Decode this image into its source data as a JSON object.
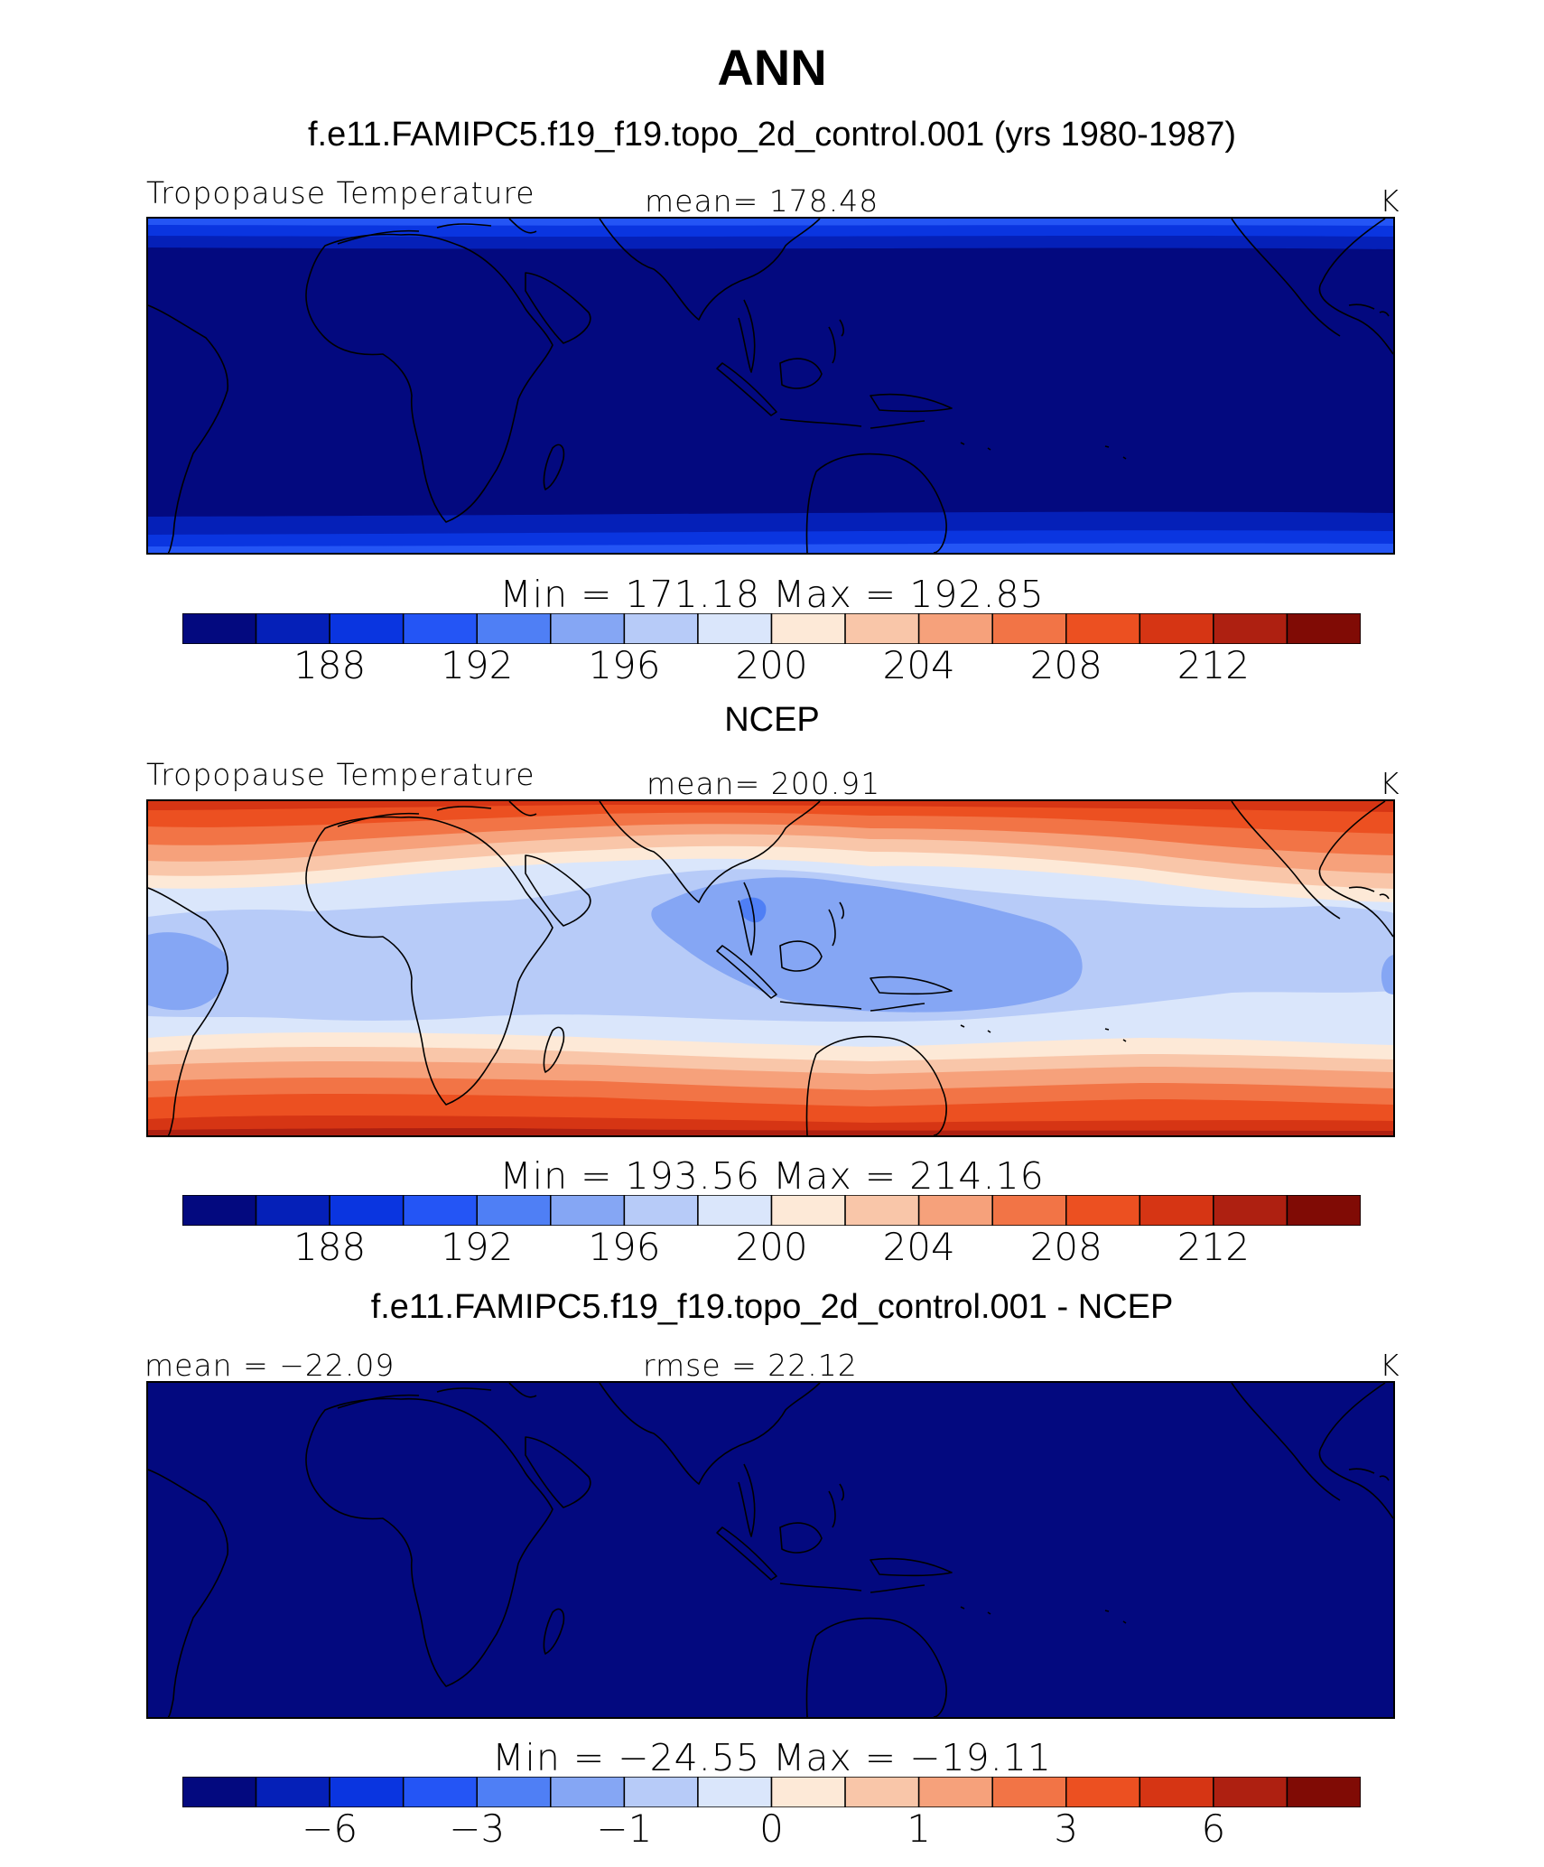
{
  "figure": {
    "title": "ANN",
    "panels": [
      {
        "id": "model",
        "header": "f.e11.FAMIPC5.f19_f19.topo_2d_control.001 (yrs 1980-1987)",
        "left_label": "Tropopause Temperature",
        "center_label": "mean=  178.48",
        "units": "K",
        "minmax": "Min  =  171.18  Max  =  192.85"
      },
      {
        "id": "obs",
        "header": "NCEP",
        "left_label": "Tropopause Temperature",
        "center_label": "mean=  200.91",
        "units": "K",
        "minmax": "Min  =  193.56  Max  =  214.16"
      },
      {
        "id": "diff",
        "header": "f.e11.FAMIPC5.f19_f19.topo_2d_control.001 - NCEP",
        "left_label": "mean  =  −22.09",
        "center_label": "rmse  =    22.12",
        "units": "K",
        "minmax": "Min  =  −24.55  Max  =  −19.11"
      }
    ]
  },
  "chart_data": [
    {
      "type": "heatmap",
      "title": "f.e11.FAMIPC5.f19_f19.topo_2d_control.001 (yrs 1980-1987)",
      "variable": "Tropopause Temperature",
      "units": "K",
      "mean": 178.48,
      "min": 171.18,
      "max": 192.85,
      "levels": [
        186,
        188,
        190,
        192,
        194,
        196,
        198,
        200,
        202,
        204,
        206,
        208,
        210,
        212,
        214
      ],
      "colorbar_ticks": [
        "188",
        "192",
        "196",
        "200",
        "204",
        "208",
        "212"
      ]
    },
    {
      "type": "heatmap",
      "title": "NCEP",
      "variable": "Tropopause Temperature",
      "units": "K",
      "mean": 200.91,
      "min": 193.56,
      "max": 214.16,
      "levels": [
        186,
        188,
        190,
        192,
        194,
        196,
        198,
        200,
        202,
        204,
        206,
        208,
        210,
        212,
        214
      ],
      "colorbar_ticks": [
        "188",
        "192",
        "196",
        "200",
        "204",
        "208",
        "212"
      ]
    },
    {
      "type": "heatmap",
      "title": "f.e11.FAMIPC5.f19_f19.topo_2d_control.001 - NCEP",
      "units": "K",
      "mean": -22.09,
      "rmse": 22.12,
      "min": -24.55,
      "max": -19.11,
      "levels": [
        -8,
        -6,
        -4,
        -3,
        -2,
        -1,
        -0.5,
        0,
        0.5,
        1,
        2,
        3,
        4,
        6,
        8
      ],
      "colorbar_ticks": [
        "−6",
        "−3",
        "−1",
        "0",
        "1",
        "3",
        "6"
      ]
    }
  ],
  "palette": [
    "#03097f",
    "#0520b8",
    "#0a35e0",
    "#2455f5",
    "#4f7ff5",
    "#85a6f4",
    "#b7cbf8",
    "#dae6fb",
    "#fde9d7",
    "#f9c6a9",
    "#f6a17b",
    "#f27446",
    "#ec5021",
    "#d63514",
    "#ae2011",
    "#800b05"
  ]
}
